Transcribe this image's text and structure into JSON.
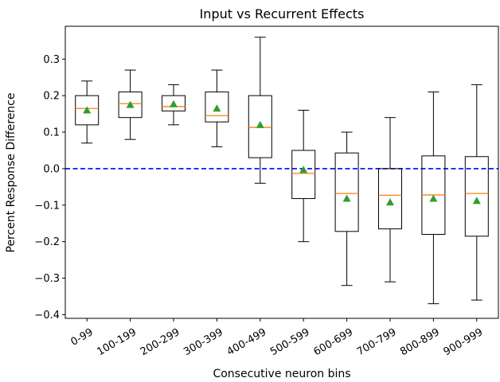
{
  "chart_data": {
    "type": "box",
    "title": "Input vs Recurrent Effects",
    "xlabel": "Consecutive neuron bins",
    "ylabel": "Percent Response Difference",
    "ylim": [
      -0.41,
      0.39
    ],
    "yticks": [
      -0.4,
      -0.3,
      -0.2,
      -0.1,
      0.0,
      0.1,
      0.2,
      0.3
    ],
    "ytick_labels": [
      "−0.4",
      "−0.3",
      "−0.2",
      "−0.1",
      "0.0",
      "0.1",
      "0.2",
      "0.3"
    ],
    "grid": false,
    "reference_line": {
      "y": 0.0,
      "style": "dashed",
      "color": "#0000ff"
    },
    "colors": {
      "box": "#000000",
      "median": "#ff7f0e",
      "mean": "#2ca02c"
    },
    "categories": [
      "0-99",
      "100-199",
      "200-299",
      "300-399",
      "400-499",
      "500-599",
      "600-699",
      "700-799",
      "800-899",
      "900-999"
    ],
    "boxes": [
      {
        "label": "0-99",
        "whisker_low": 0.07,
        "q1": 0.12,
        "median": 0.165,
        "q3": 0.2,
        "whisker_high": 0.24,
        "mean": 0.16
      },
      {
        "label": "100-199",
        "whisker_low": 0.08,
        "q1": 0.14,
        "median": 0.178,
        "q3": 0.21,
        "whisker_high": 0.27,
        "mean": 0.175
      },
      {
        "label": "200-299",
        "whisker_low": 0.12,
        "q1": 0.158,
        "median": 0.17,
        "q3": 0.2,
        "whisker_high": 0.23,
        "mean": 0.177
      },
      {
        "label": "300-399",
        "whisker_low": 0.06,
        "q1": 0.128,
        "median": 0.145,
        "q3": 0.21,
        "whisker_high": 0.27,
        "mean": 0.165
      },
      {
        "label": "400-499",
        "whisker_low": -0.04,
        "q1": 0.03,
        "median": 0.113,
        "q3": 0.2,
        "whisker_high": 0.36,
        "mean": 0.12
      },
      {
        "label": "500-599",
        "whisker_low": -0.2,
        "q1": -0.082,
        "median": -0.013,
        "q3": 0.05,
        "whisker_high": 0.16,
        "mean": -0.003
      },
      {
        "label": "600-699",
        "whisker_low": -0.32,
        "q1": -0.172,
        "median": -0.068,
        "q3": 0.043,
        "whisker_high": 0.1,
        "mean": -0.082
      },
      {
        "label": "700-799",
        "whisker_low": -0.31,
        "q1": -0.165,
        "median": -0.073,
        "q3": 0.0,
        "whisker_high": 0.14,
        "mean": -0.092
      },
      {
        "label": "800-899",
        "whisker_low": -0.37,
        "q1": -0.18,
        "median": -0.072,
        "q3": 0.035,
        "whisker_high": 0.21,
        "mean": -0.082
      },
      {
        "label": "900-999",
        "whisker_low": -0.36,
        "q1": -0.185,
        "median": -0.068,
        "q3": 0.033,
        "whisker_high": 0.23,
        "mean": -0.088
      }
    ]
  }
}
